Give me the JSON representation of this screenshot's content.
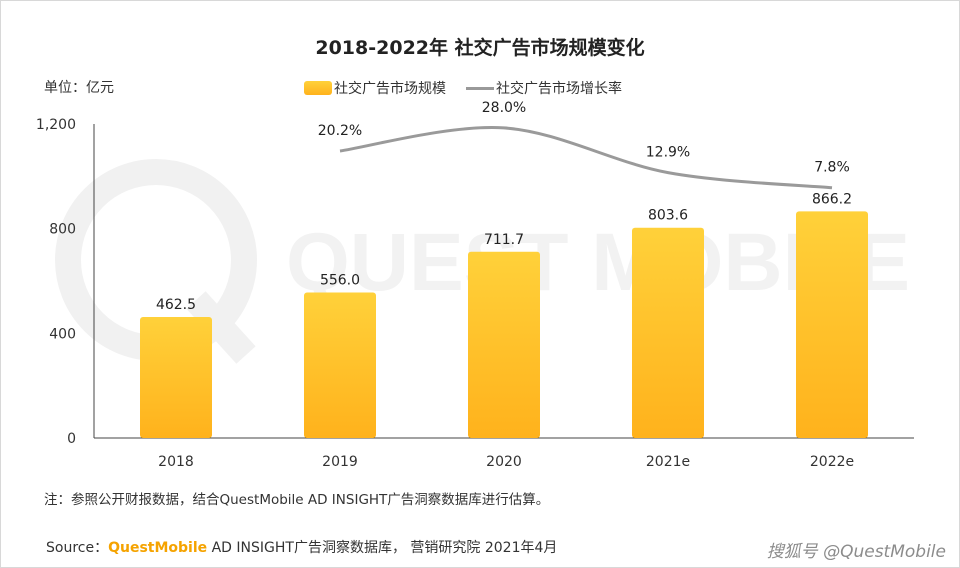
{
  "title": "2018-2022年 社交广告市场规模变化",
  "unit_label": "单位：亿元",
  "legend": {
    "bar_label": "社交广告市场规模",
    "line_label": "社交广告市场增长率"
  },
  "note": "注：参照公开财报数据，结合QuestMobile AD INSIGHT广告洞察数据库进行估算。",
  "source": {
    "prefix": "Source：",
    "brand": "QuestMobile",
    "rest": " AD INSIGHT广告洞察数据库， 营销研究院 2021年4月"
  },
  "watermark_text": "QUEST MOBILE",
  "corner_mark": "搜狐号 @QuestMobile",
  "colors": {
    "bar_top": "#ffd13a",
    "bar_bottom": "#ffb21c",
    "line": "#9a9a9a",
    "axis": "#444444"
  },
  "chart_data": {
    "type": "bar",
    "categories": [
      "2018",
      "2019",
      "2020",
      "2021e",
      "2022e"
    ],
    "series": [
      {
        "name": "社交广告市场规模",
        "type": "bar",
        "values": [
          462.5,
          556.0,
          711.7,
          803.6,
          866.2
        ],
        "labels": [
          "462.5",
          "556.0",
          "711.7",
          "803.6",
          "866.2"
        ]
      },
      {
        "name": "社交广告市场增长率",
        "type": "line",
        "values": [
          null,
          20.2,
          28.0,
          12.9,
          7.8
        ],
        "labels": [
          "",
          "20.2%",
          "28.0%",
          "12.9%",
          "7.8%"
        ]
      }
    ],
    "y_ticks": [
      "0",
      "400",
      "800",
      "1,200"
    ],
    "ylim": [
      0,
      1200
    ],
    "grid": false,
    "legend_position": "top-center"
  }
}
